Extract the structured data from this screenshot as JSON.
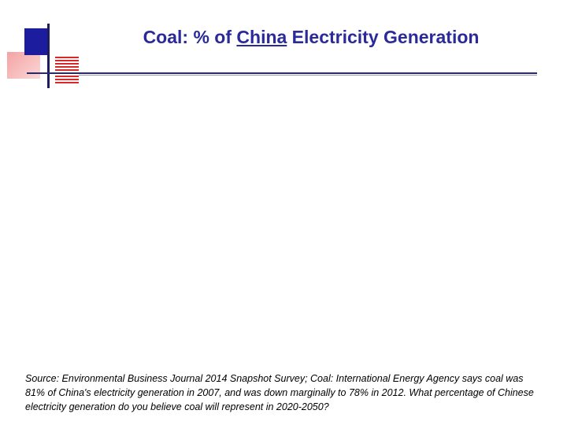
{
  "slide": {
    "title_prefix": "Coal: % of ",
    "title_underlined": "China",
    "title_suffix": " Electricity Generation",
    "source_note": "Source: Environmental Business Journal 2014 Snapshot Survey; Coal: International Energy Agency says coal was 81% of China's electricity generation in 2007, and was down marginally to 78% in 2012. What percentage of Chinese electricity generation do you believe coal will represent in 2020-2050?"
  },
  "colors": {
    "title": "#2a2a9a",
    "deco_blue": "#1c1c9e",
    "deco_red": "#d62828",
    "deco_pink": "#f4a3a3"
  }
}
